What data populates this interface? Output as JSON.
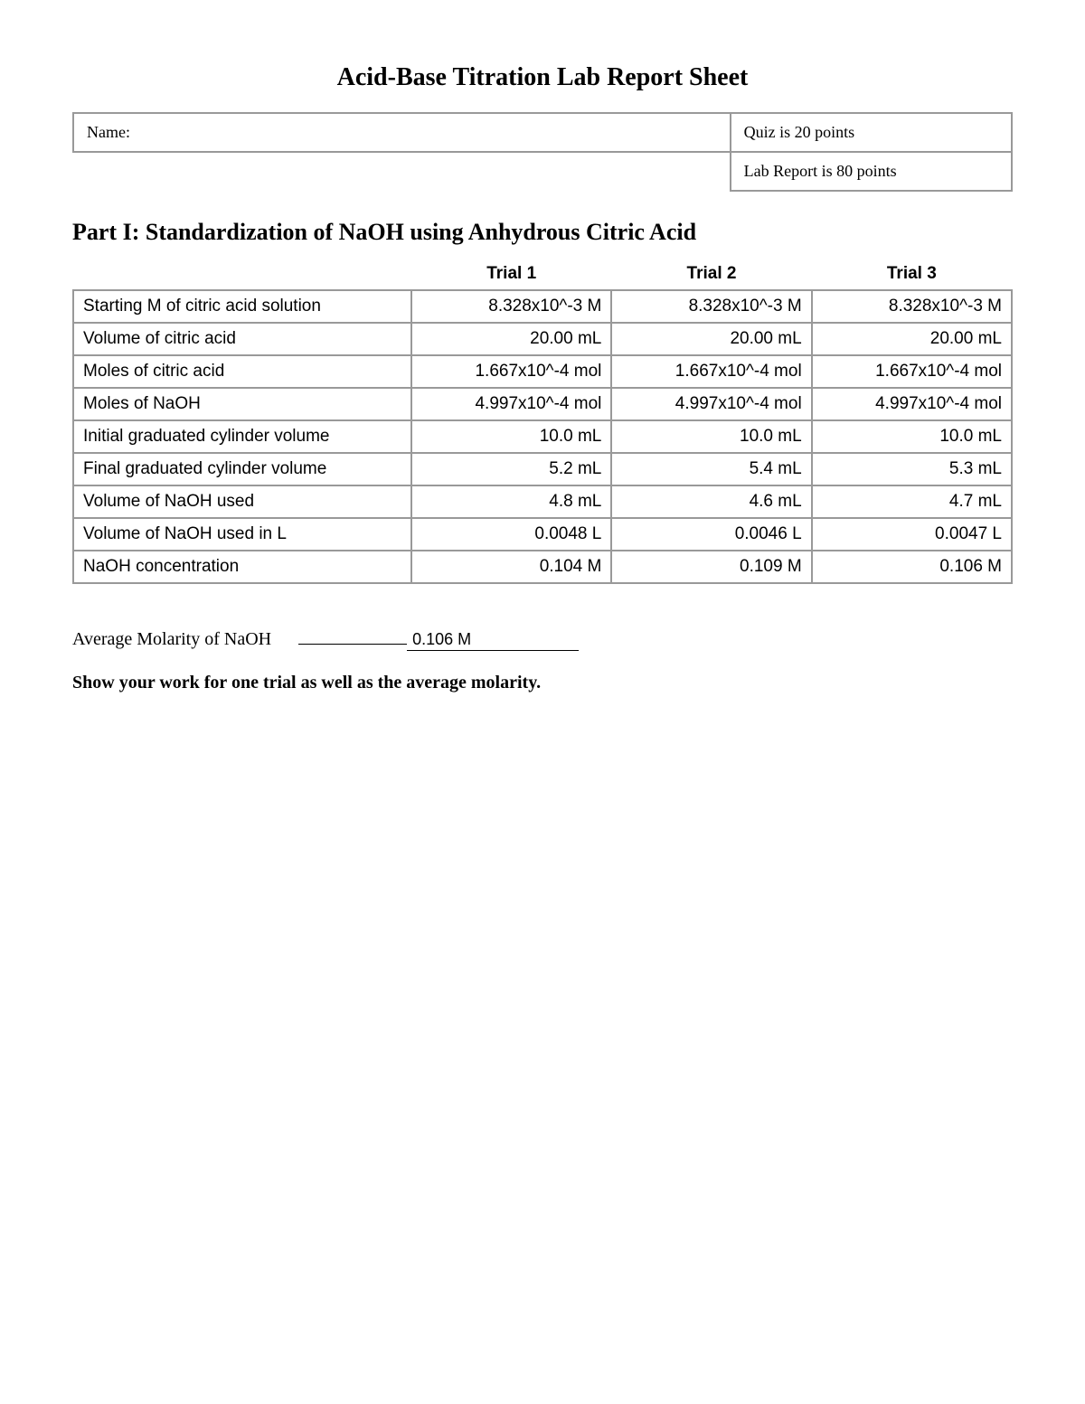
{
  "title": "Acid-Base Titration Lab Report Sheet",
  "header": {
    "name_label": "Name:",
    "quiz_points": "Quiz is 20 points",
    "report_points": "Lab Report is 80 points"
  },
  "part1": {
    "heading": "Part I: Standardization of NaOH using Anhydrous Citric Acid",
    "columns": [
      "",
      "Trial 1",
      "Trial 2",
      "Trial 3"
    ],
    "rows": [
      {
        "label": "Starting M of citric acid solution",
        "t1": "8.328x10^-3 M",
        "t2": "8.328x10^-3 M",
        "t3": "8.328x10^-3 M"
      },
      {
        "label": "Volume of citric acid",
        "t1": "20.00 mL",
        "t2": "20.00 mL",
        "t3": "20.00 mL"
      },
      {
        "label": "Moles of citric acid",
        "t1": "1.667x10^-4 mol",
        "t2": "1.667x10^-4 mol",
        "t3": "1.667x10^-4 mol"
      },
      {
        "label": "Moles of NaOH",
        "t1": "4.997x10^-4 mol",
        "t2": "4.997x10^-4 mol",
        "t3": "4.997x10^-4 mol"
      },
      {
        "label": "Initial graduated cylinder volume",
        "t1": "10.0 mL",
        "t2": "10.0 mL",
        "t3": "10.0 mL"
      },
      {
        "label": "Final graduated cylinder volume",
        "t1": "5.2 mL",
        "t2": "5.4 mL",
        "t3": "5.3 mL"
      },
      {
        "label": "Volume of NaOH used",
        "t1": "4.8 mL",
        "t2": "4.6 mL",
        "t3": "4.7 mL"
      },
      {
        "label": "Volume of NaOH used in L",
        "t1": "0.0048 L",
        "t2": "0.0046 L",
        "t3": "0.0047 L"
      },
      {
        "label": "NaOH concentration",
        "t1": "0.104 M",
        "t2": "0.109 M",
        "t3": "0.106 M"
      }
    ],
    "average_label": "Average Molarity of NaOH",
    "average_value": "0.106 M",
    "show_work": "Show your work for one trial as well as the average molarity."
  },
  "style": {
    "border_color": "#999999",
    "background_color": "#ffffff",
    "text_color": "#000000",
    "title_fontsize": 28,
    "section_fontsize": 26,
    "table_fontsize": 19,
    "body_fontsize": 20,
    "table_font": "Verdana",
    "body_font": "Georgia / Times"
  }
}
